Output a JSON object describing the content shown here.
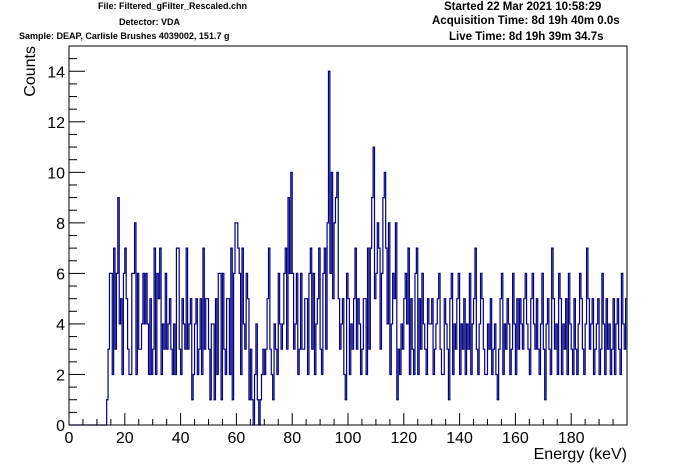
{
  "header": {
    "file": "File: Filtered_gFilter_Rescaled.chn",
    "detector": "Detector: VDA",
    "sample": "Sample: DEAP, Carlisle Brushes 4039002, 151.7 g",
    "started": "Started 22 Mar 2021 10:58:29",
    "acquisition": "Acquisition Time: 8d 19h 40m 0.0s",
    "live": "Live Time: 8d 19h 39m 34.7s"
  },
  "colors": {
    "series": "#000080",
    "axes": "#000000",
    "background": "#ffffff"
  },
  "chart_data": {
    "type": "histogram",
    "title": "",
    "xlabel": "Energy (keV)",
    "ylabel": "Counts",
    "xlim": [
      0,
      200
    ],
    "ylim": [
      0,
      15
    ],
    "grid": false,
    "x_ticks": [
      0,
      20,
      40,
      60,
      80,
      100,
      120,
      140,
      160,
      180
    ],
    "y_ticks": [
      0,
      2,
      4,
      6,
      8,
      10,
      12,
      14
    ],
    "bin_width": 0.5,
    "x_start": 0,
    "values": [
      0,
      0,
      0,
      0,
      0,
      0,
      0,
      0,
      0,
      0,
      0,
      0,
      0,
      0,
      0,
      0,
      0,
      0,
      0,
      0,
      0,
      0,
      0,
      0,
      0,
      0,
      0,
      1,
      3,
      6,
      6,
      2,
      7,
      3,
      6,
      9,
      4,
      5,
      2,
      6,
      7,
      5,
      3,
      2,
      2,
      6,
      6,
      8,
      2,
      6,
      3,
      3,
      4,
      6,
      4,
      6,
      4,
      2,
      5,
      2,
      3,
      7,
      2,
      6,
      5,
      7,
      2,
      4,
      3,
      6,
      3,
      4,
      5,
      3,
      2,
      4,
      2,
      7,
      7,
      3,
      2,
      5,
      4,
      3,
      7,
      3,
      4,
      5,
      1,
      2,
      4,
      5,
      2,
      3,
      5,
      2,
      7,
      3,
      5,
      5,
      3,
      1,
      4,
      4,
      1,
      5,
      2,
      6,
      6,
      1,
      6,
      3,
      2,
      5,
      5,
      2,
      7,
      1,
      6,
      8,
      8,
      7,
      6,
      2,
      7,
      4,
      3,
      6,
      5,
      1,
      3,
      1,
      0,
      2,
      4,
      1,
      0,
      1,
      2,
      3,
      2,
      3,
      5,
      7,
      3,
      2,
      1,
      4,
      3,
      2,
      6,
      4,
      3,
      4,
      6,
      7,
      3,
      9,
      6,
      10,
      6,
      3,
      4,
      6,
      2,
      3,
      6,
      3,
      3,
      5,
      5,
      2,
      6,
      7,
      3,
      6,
      2,
      4,
      5,
      7,
      3,
      2,
      6,
      7,
      3,
      8,
      14,
      6,
      10,
      5,
      8,
      9,
      10,
      5,
      3,
      4,
      5,
      2,
      1,
      6,
      5,
      2,
      4,
      3,
      5,
      7,
      3,
      5,
      4,
      2,
      3,
      5,
      5,
      2,
      7,
      3,
      7,
      9,
      11,
      5,
      6,
      8,
      7,
      3,
      6,
      9,
      10,
      7,
      4,
      8,
      2,
      4,
      6,
      5,
      8,
      1,
      3,
      2,
      4,
      3,
      5,
      6,
      4,
      7,
      2,
      5,
      3,
      2,
      6,
      7,
      2,
      5,
      3,
      6,
      4,
      3,
      2,
      5,
      4,
      4,
      5,
      2,
      3,
      4,
      5,
      6,
      3,
      2,
      2,
      5,
      4,
      3,
      1,
      5,
      6,
      2,
      4,
      3,
      5,
      6,
      2,
      4,
      3,
      5,
      2,
      4,
      3,
      6,
      2,
      4,
      5,
      7,
      3,
      2,
      4,
      6,
      5,
      3,
      2,
      2,
      4,
      3,
      5,
      2,
      3,
      4,
      2,
      1,
      3,
      5,
      6,
      2,
      4,
      3,
      5,
      4,
      2,
      3,
      6,
      4,
      2,
      5,
      3,
      5,
      4,
      3,
      5,
      6,
      4,
      3,
      2,
      5,
      6,
      4,
      3,
      5,
      3,
      2,
      4,
      6,
      3,
      1,
      4,
      5,
      3,
      2,
      7,
      5,
      3,
      4,
      2,
      6,
      5,
      2,
      4,
      3,
      5,
      2,
      6,
      4,
      3,
      2,
      5,
      3,
      2,
      4,
      6,
      5,
      3,
      2,
      4,
      7,
      5,
      3,
      4,
      5,
      2,
      3,
      4,
      5,
      2,
      3,
      6,
      4,
      2,
      5,
      3,
      4,
      2,
      3,
      5,
      2,
      4,
      5,
      3,
      2,
      6,
      4,
      3,
      5,
      2,
      4,
      3,
      5,
      4,
      2,
      3,
      6,
      2,
      4,
      5,
      3,
      2,
      4,
      3,
      5,
      2,
      6,
      4,
      3,
      2,
      5,
      4,
      3,
      5,
      2,
      4,
      6,
      3,
      2,
      1,
      5,
      7,
      3,
      8,
      6,
      4,
      8,
      3,
      7,
      5,
      9,
      3,
      6,
      10,
      7,
      4,
      3,
      5,
      2,
      3,
      4,
      5,
      3,
      2,
      4,
      3,
      5
    ]
  }
}
